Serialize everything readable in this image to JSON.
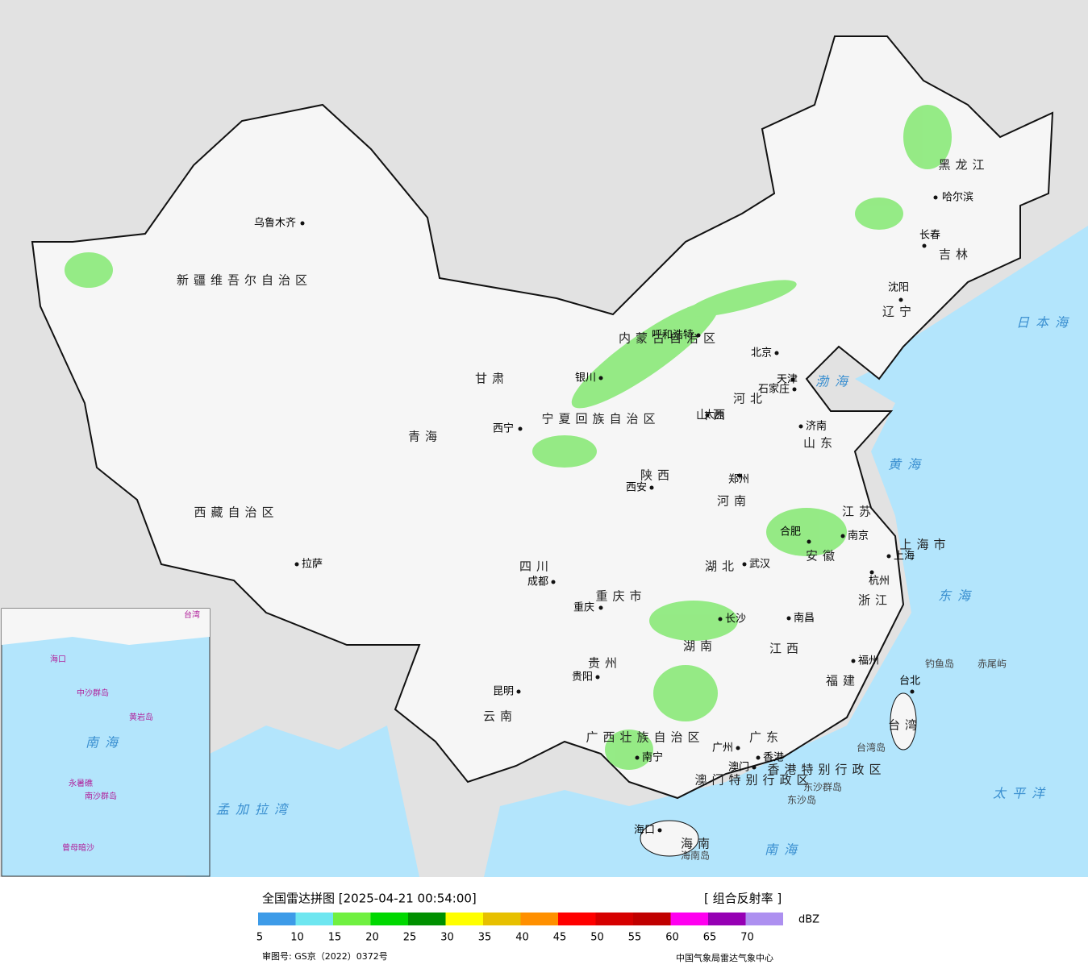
{
  "map": {
    "cities": [
      "乌鲁木齐",
      "西宁",
      "拉萨",
      "成都",
      "重庆",
      "贵阳",
      "昆明",
      "南宁",
      "广州",
      "澳门",
      "香港",
      "海口",
      "西安",
      "郑州",
      "武汉",
      "长沙",
      "南昌",
      "福州",
      "杭州",
      "上海",
      "南京",
      "合肥",
      "济南",
      "石家庄",
      "太原",
      "北京",
      "天津",
      "呼和浩特",
      "银川",
      "沈阳",
      "长春",
      "哈尔滨",
      "台北"
    ],
    "regions": [
      "新疆维吾尔自治区",
      "西藏自治区",
      "青海",
      "甘肃",
      "内蒙古自治区",
      "四川",
      "云南",
      "贵州",
      "广西壮族自治区",
      "广东",
      "湖南",
      "湖北",
      "江西",
      "福建",
      "浙江",
      "安徽",
      "江苏",
      "山东",
      "河南",
      "河北",
      "山西",
      "陕西",
      "宁夏回族自治区",
      "辽宁",
      "吉林",
      "黑龙江",
      "台湾",
      "海南",
      "上海市",
      "重庆市",
      "香港特别行政区",
      "澳门特别行政区"
    ],
    "seas": [
      "渤海",
      "黄海",
      "东海",
      "南海",
      "日本海",
      "太平洋",
      "孟加拉湾"
    ],
    "islands": [
      "钓鱼岛",
      "赤尾屿",
      "台湾岛",
      "东沙群岛",
      "东沙岛",
      "海南岛"
    ],
    "inset": [
      "南海",
      "中沙群岛",
      "黄岩岛",
      "永暑礁",
      "南沙群岛",
      "曾母暗沙",
      "海口",
      "台湾"
    ]
  },
  "footer": {
    "title": "全国雷达拼图 [2025-04-21 00:54:00]",
    "product": "[ 组合反射率 ]",
    "unit": "dBZ",
    "approval": "审图号: GS京（2022）0372号",
    "source": "中国气象局雷达气象中心"
  },
  "legend": {
    "colors": [
      "#3d9be8",
      "#6ee6f0",
      "#70f040",
      "#00d800",
      "#009000",
      "#ffff00",
      "#e7c000",
      "#ff9000",
      "#ff0000",
      "#d60000",
      "#c00000",
      "#ff00f0",
      "#9600b4",
      "#ad90f0"
    ],
    "labels": [
      5,
      10,
      15,
      20,
      25,
      30,
      35,
      40,
      45,
      50,
      55,
      60,
      65,
      70
    ]
  }
}
